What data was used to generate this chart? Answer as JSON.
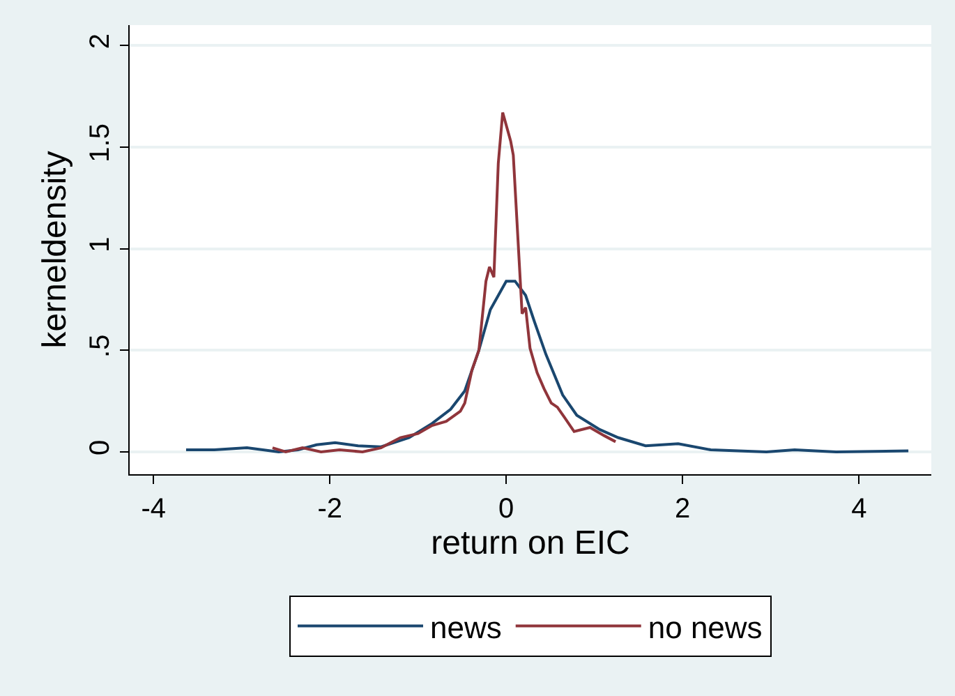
{
  "chart_data": {
    "type": "line",
    "xlabel": "return on EIC",
    "ylabel": "kerneldensity",
    "xlim": [
      -4.27,
      4.82
    ],
    "xticks": [
      -4,
      -2,
      0,
      2,
      4
    ],
    "ylim": [
      -0.11,
      2.1
    ],
    "yticks": [
      0,
      {
        "value": 0.5,
        "label": ".5"
      },
      1,
      1.5,
      2
    ],
    "grid": "y",
    "legend": "bottom",
    "line_style": "solid",
    "marker": "none",
    "series": [
      {
        "name": "news",
        "color": "#1a476f",
        "x": [
          -3.63,
          -3.31,
          -2.94,
          -2.58,
          -2.36,
          -2.15,
          -1.94,
          -1.68,
          -1.42,
          -1.1,
          -0.84,
          -0.63,
          -0.47,
          -0.31,
          -0.18,
          0.0,
          0.1,
          0.22,
          0.32,
          0.45,
          0.64,
          0.8,
          1.06,
          1.27,
          1.58,
          1.95,
          2.32,
          2.95,
          3.27,
          3.74,
          4.56
        ],
        "values": [
          0.01,
          0.01,
          0.02,
          0.0,
          0.01,
          0.035,
          0.045,
          0.03,
          0.025,
          0.07,
          0.14,
          0.21,
          0.3,
          0.5,
          0.7,
          0.84,
          0.84,
          0.77,
          0.64,
          0.48,
          0.28,
          0.18,
          0.11,
          0.07,
          0.03,
          0.04,
          0.01,
          0.0,
          0.01,
          0.0,
          0.005
        ]
      },
      {
        "name": "no news",
        "color": "#90353b",
        "x": [
          -2.65,
          -2.5,
          -2.31,
          -2.1,
          -1.89,
          -1.63,
          -1.42,
          -1.2,
          -1.0,
          -0.84,
          -0.68,
          -0.52,
          -0.47,
          -0.39,
          -0.31,
          -0.23,
          -0.19,
          -0.14,
          -0.09,
          -0.04,
          0.05,
          0.08,
          0.18,
          0.22,
          0.27,
          0.35,
          0.43,
          0.51,
          0.58,
          0.66,
          0.77,
          0.95,
          1.11,
          1.24
        ],
        "values": [
          0.02,
          0.0,
          0.02,
          0.0,
          0.01,
          0.0,
          0.02,
          0.07,
          0.09,
          0.13,
          0.15,
          0.2,
          0.24,
          0.4,
          0.5,
          0.84,
          0.91,
          0.86,
          1.42,
          1.67,
          1.53,
          1.46,
          0.68,
          0.71,
          0.51,
          0.39,
          0.31,
          0.24,
          0.22,
          0.17,
          0.1,
          0.12,
          0.08,
          0.05
        ]
      }
    ]
  }
}
